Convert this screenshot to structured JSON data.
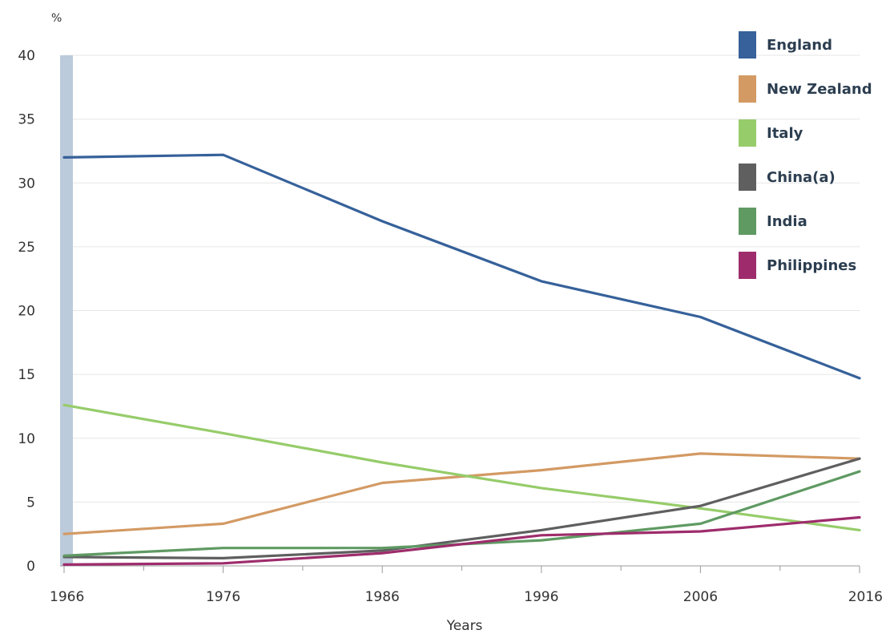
{
  "chart_data": {
    "type": "line",
    "title": "",
    "y_unit_label": "%",
    "xlabel": "Years",
    "ylabel": "%",
    "x": [
      1966,
      1976,
      1986,
      1996,
      2006,
      2016
    ],
    "x_tick_labels": [
      "1966",
      "1976",
      "1986",
      "1996",
      "2006",
      "2016"
    ],
    "ylim": [
      0,
      40
    ],
    "y_ticks": [
      0,
      5,
      10,
      15,
      20,
      25,
      30,
      35,
      40
    ],
    "y_tick_labels": [
      "0",
      "5",
      "10",
      "15",
      "20",
      "25",
      "30",
      "35",
      "40"
    ],
    "grid": true,
    "legend_position": "top-right",
    "series": [
      {
        "name": "England",
        "color": "#36619a",
        "values": [
          32.0,
          32.2,
          27.0,
          22.3,
          19.5,
          14.7
        ]
      },
      {
        "name": "New Zealand",
        "color": "#d39a64",
        "values": [
          2.5,
          3.3,
          6.5,
          7.5,
          8.8,
          8.4
        ]
      },
      {
        "name": "Italy",
        "color": "#96cc6a",
        "values": [
          12.6,
          10.4,
          8.1,
          6.1,
          4.5,
          2.8
        ]
      },
      {
        "name": "China(a)",
        "color": "#5f5f60",
        "values": [
          0.7,
          0.6,
          1.2,
          2.8,
          4.7,
          8.4
        ]
      },
      {
        "name": "India",
        "color": "#5f9a63",
        "values": [
          0.8,
          1.4,
          1.4,
          2.0,
          3.3,
          7.4
        ]
      },
      {
        "name": "Philippines",
        "color": "#9e2c6c",
        "values": [
          0.1,
          0.2,
          1.0,
          2.4,
          2.7,
          3.8
        ]
      }
    ]
  }
}
